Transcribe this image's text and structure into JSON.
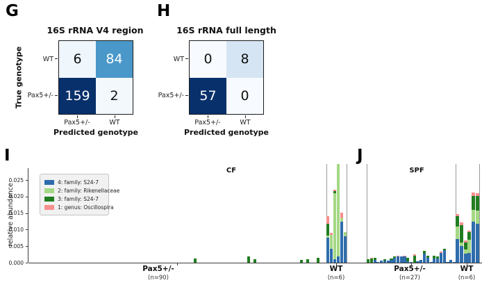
{
  "panel_labels": {
    "g": "G",
    "h": "H",
    "i": "I",
    "j": "J"
  },
  "confusion_g": {
    "title": "16S rRNA V4 region",
    "y_axis_label": "True genotype",
    "x_axis_label": "Predicted genotype",
    "row_labels": [
      "WT",
      "Pax5+/-"
    ],
    "col_labels": [
      "Pax5+/-",
      "WT"
    ],
    "cells": [
      [
        {
          "value": "6",
          "bg": "#eff6fc",
          "fg": "#111111"
        },
        {
          "value": "84",
          "bg": "#4a97c9",
          "fg": "#ffffff"
        }
      ],
      [
        {
          "value": "159",
          "bg": "#08306b",
          "fg": "#ffffff"
        },
        {
          "value": "2",
          "bg": "#f3f8fd",
          "fg": "#111111"
        }
      ]
    ]
  },
  "confusion_h": {
    "title": "16S rRNA full length",
    "x_axis_label": "Predicted genotype",
    "row_labels": [
      "WT",
      "Pax5+/-"
    ],
    "col_labels": [
      "Pax5+/-",
      "WT"
    ],
    "cells": [
      [
        {
          "value": "0",
          "bg": "#f7fbff",
          "fg": "#111111"
        },
        {
          "value": "8",
          "bg": "#d5e5f4",
          "fg": "#111111"
        }
      ],
      [
        {
          "value": "57",
          "bg": "#08306b",
          "fg": "#ffffff"
        },
        {
          "value": "0",
          "bg": "#f7fbff",
          "fg": "#111111"
        }
      ]
    ]
  },
  "chart_data": [
    {
      "type": "bar",
      "stacked": true,
      "title": "CF",
      "ylabel": "relative abundance",
      "ylim": [
        0,
        0.0298
      ],
      "yticks": [
        0.0,
        0.005,
        0.01,
        0.015,
        0.02,
        0.025
      ],
      "ytick_labels": [
        "0.000",
        "0.005",
        "0.010",
        "0.015",
        "0.020",
        "0.025"
      ],
      "grid": false,
      "legend_position": "upper-left",
      "colors": {
        "blue": "#2e6cac",
        "lightgreen": "#a5d884",
        "darkgreen": "#217d21",
        "pink": "#f88f8f"
      },
      "legend": [
        {
          "label": "4: family: S24-7",
          "color": "#2e6cac"
        },
        {
          "label": "2: family: Rikenellaceae",
          "color": "#a5d884"
        },
        {
          "label": "3: family: S24-7",
          "color": "#217d21"
        },
        {
          "label": "1: genus: Oscillospira",
          "color": "#f88f8f"
        }
      ],
      "groups": [
        {
          "name": "Pax5+/-",
          "n_label": "(n=90)",
          "n": 90,
          "bars_sparse": [
            {
              "i": 50,
              "darkgreen": 0.0013
            },
            {
              "i": 66,
              "darkgreen": 0.0018
            },
            {
              "i": 68,
              "darkgreen": 0.001
            },
            {
              "i": 82,
              "darkgreen": 0.0008
            },
            {
              "i": 84,
              "darkgreen": 0.001
            },
            {
              "i": 87,
              "darkgreen": 0.0015
            }
          ]
        },
        {
          "name": "WT",
          "n_label": "(n=6)",
          "n": 6,
          "bars": [
            {
              "blue": 0.0075,
              "lightgreen": 0.0008,
              "darkgreen": 0.0035,
              "pink": 0.0022
            },
            {
              "blue": 0.0042,
              "lightgreen": 0.0042,
              "pink": 0.0006
            },
            {
              "blue": 0.001,
              "lightgreen": 0.02,
              "darkgreen": 0.0006,
              "pink": 0.0004
            },
            {
              "blue": 0.002,
              "lightgreen": 0.0278
            },
            {
              "blue": 0.0125,
              "lightgreen": 0.001,
              "pink": 0.0016
            },
            {
              "blue": 0.008,
              "lightgreen": 0.0013
            }
          ]
        }
      ]
    },
    {
      "type": "bar",
      "stacked": true,
      "title": "SPF",
      "ylim": [
        0,
        0.0298
      ],
      "grid": false,
      "groups": [
        {
          "name": "Pax5+/-",
          "n_label": "(n=27)",
          "n": 27,
          "bars": [
            {
              "darkgreen": 0.001
            },
            {
              "darkgreen": 0.0012,
              "pink": 0.0002
            },
            {
              "blue": 0.0008,
              "darkgreen": 0.0007
            },
            {
              "blue": 0.0003
            },
            {
              "blue": 0.0006
            },
            {
              "blue": 0.0006,
              "darkgreen": 0.0004
            },
            {
              "blue": 0.0007
            },
            {
              "blue": 0.0008,
              "darkgreen": 0.0005
            },
            {
              "blue": 0.0015,
              "darkgreen": 0.0005
            },
            {
              "blue": 0.0018,
              "pink": 0.0002
            },
            {
              "blue": 0.0018
            },
            {
              "blue": 0.0018,
              "pink": 0.0002
            },
            {
              "blue": 0.0004,
              "darkgreen": 0.001
            },
            {
              "blue": 0.0003
            },
            {
              "darkgreen": 0.0022,
              "pink": 0.0003
            },
            {
              "blue": 0.0005
            },
            {
              "blue": 0.0008
            },
            {
              "blue": 0.0028,
              "darkgreen": 0.0008
            },
            {
              "blue": 0.0015,
              "darkgreen": 0.0006
            },
            {
              "blue": 0.0003
            },
            {
              "blue": 0.0012,
              "darkgreen": 0.001
            },
            {
              "blue": 0.0013,
              "darkgreen": 0.0006
            },
            {
              "blue": 0.003,
              "pink": 0.0003
            },
            {
              "blue": 0.0038,
              "darkgreen": 0.0005
            },
            {
              "blue": 0.0003
            },
            {
              "blue": 0.0008
            },
            {
              "blue": 0.0002
            }
          ]
        },
        {
          "name": "WT",
          "n_label": "(n=6)",
          "n": 6,
          "bars": [
            {
              "blue": 0.0072,
              "lightgreen": 0.0038,
              "darkgreen": 0.003,
              "pink": 0.0008
            },
            {
              "blue": 0.005,
              "lightgreen": 0.0012,
              "darkgreen": 0.0052,
              "pink": 0.0008
            },
            {
              "blue": 0.0028,
              "lightgreen": 0.0012,
              "darkgreen": 0.0022,
              "pink": 0.0006
            },
            {
              "blue": 0.003,
              "lightgreen": 0.004,
              "darkgreen": 0.0022,
              "pink": 0.0004
            },
            {
              "blue": 0.0125,
              "lightgreen": 0.0035,
              "darkgreen": 0.0042,
              "pink": 0.001
            },
            {
              "blue": 0.0118,
              "lightgreen": 0.004,
              "darkgreen": 0.0044,
              "pink": 0.0008
            }
          ]
        }
      ]
    }
  ]
}
